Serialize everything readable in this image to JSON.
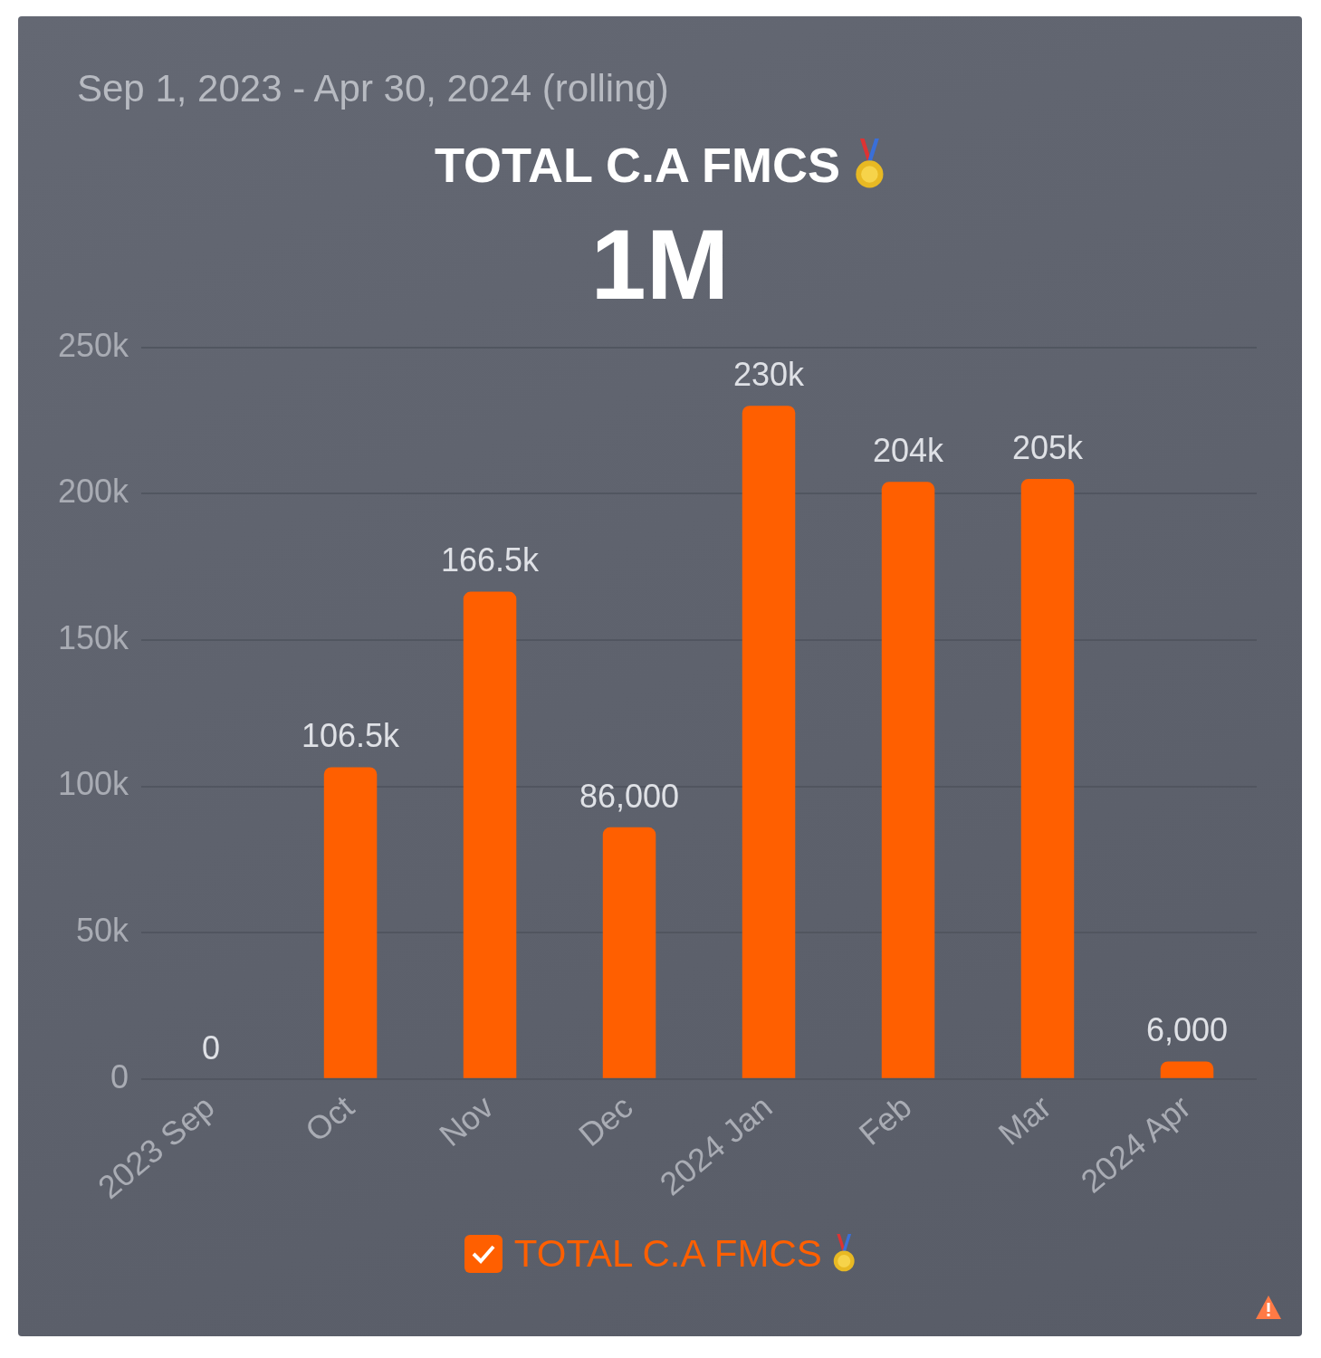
{
  "chart_data": {
    "type": "bar",
    "title": "TOTAL C.A FMCS",
    "subtitle": "Sep 1, 2023 - Apr 30, 2024 (rolling)",
    "annotations": [
      "1M"
    ],
    "categories": [
      "2023 Sep",
      "Oct",
      "Nov",
      "Dec",
      "2024 Jan",
      "Feb",
      "Mar",
      "2024 Apr"
    ],
    "series": [
      {
        "name": "TOTAL C.A FMCS",
        "color": "#ff5f00",
        "values": [
          0,
          106500,
          166500,
          86000,
          230000,
          204000,
          205000,
          6000
        ],
        "value_labels": [
          "0",
          "106.5k",
          "166.5k",
          "86,000",
          "230k",
          "204k",
          "205k",
          "6,000"
        ]
      }
    ],
    "ylim": [
      0,
      250000
    ],
    "yticks": [
      {
        "value": 0,
        "label": "0"
      },
      {
        "value": 50000,
        "label": "50k"
      },
      {
        "value": 100000,
        "label": "100k"
      },
      {
        "value": 150000,
        "label": "150k"
      },
      {
        "value": 200000,
        "label": "200k"
      },
      {
        "value": 250000,
        "label": "250k"
      }
    ],
    "grid": "y",
    "legend": "bottom"
  }
}
